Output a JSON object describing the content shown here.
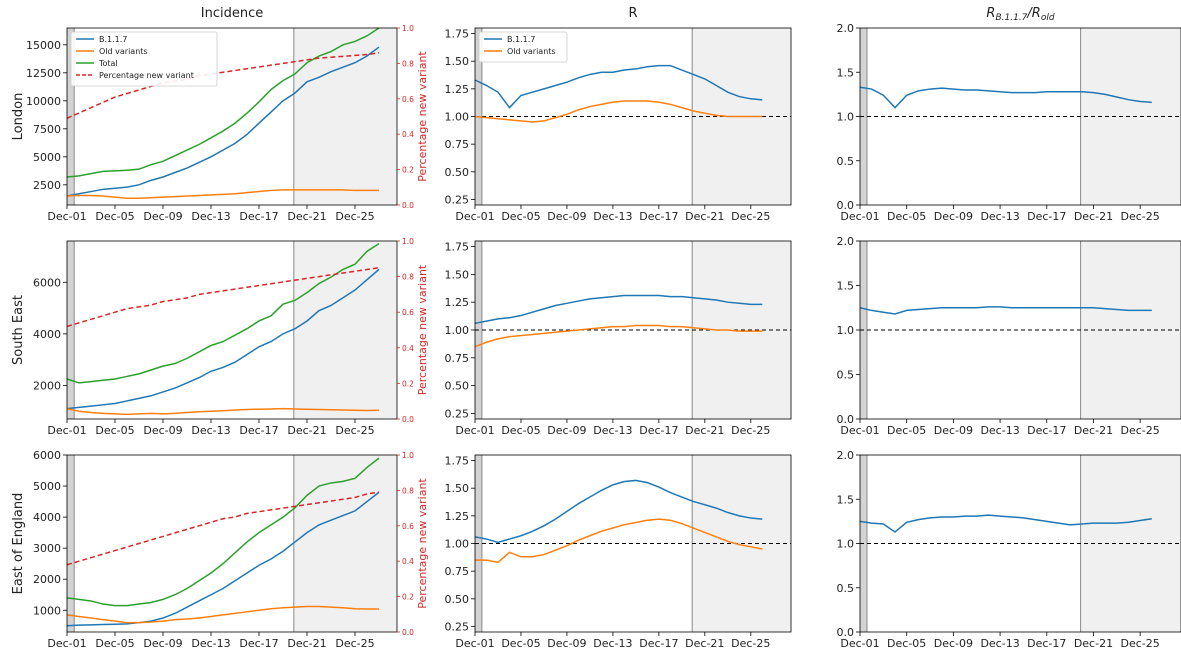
{
  "column_titles": [
    "Incidence",
    "R",
    "R_{B.1.1.7}/R_{old}"
  ],
  "row_titles": [
    "London",
    "South East",
    "East of England"
  ],
  "x_tick_labels": [
    "Dec-01",
    "Dec-05",
    "Dec-09",
    "Dec-13",
    "Dec-17",
    "Dec-21",
    "Dec-25"
  ],
  "colors": {
    "b117": "#1f77b4",
    "old": "#ff7f0e",
    "total": "#2ca02c",
    "pct": "#d62728",
    "shade": "#f0f0f0",
    "shade_dark": "#d3d3d3",
    "ref_line": "#000000"
  },
  "chart_data": {
    "type": "line",
    "x_start_date": "Dec-01",
    "x_range_days": [
      0,
      27.5
    ],
    "shading": {
      "dark_band_days": [
        0,
        0.6
      ],
      "light_band_start_day": 18.9
    },
    "panels": [
      {
        "region": "London",
        "column": "Incidence",
        "ylim": [
          700,
          16500
        ],
        "yticks": [
          2500,
          5000,
          7500,
          10000,
          12500,
          15000
        ],
        "y2label": "Percentage new variant",
        "y2lim": [
          0,
          1.0
        ],
        "y2ticks": [
          0.0,
          0.2,
          0.4,
          0.6,
          0.8,
          1.0
        ],
        "legend": [
          "B.1.1.7",
          "Old variants",
          "Total",
          "Percentage new variant"
        ],
        "legend_position": "top-left",
        "series": [
          {
            "name": "B.1.1.7",
            "values": [
              1500,
              1700,
              1900,
              2100,
              2200,
              2300,
              2500,
              2900,
              3200,
              3600,
              4000,
              4500,
              5000,
              5600,
              6200,
              7000,
              8000,
              9000,
              10000,
              10700,
              11700,
              12100,
              12600,
              13000,
              13400,
              14000,
              14800
            ]
          },
          {
            "name": "Old variants",
            "values": [
              1500,
              1550,
              1550,
              1500,
              1400,
              1300,
              1300,
              1350,
              1400,
              1450,
              1500,
              1550,
              1600,
              1650,
              1700,
              1800,
              1900,
              2000,
              2050,
              2050,
              2050,
              2050,
              2050,
              2050,
              2000,
              2000,
              2000
            ]
          },
          {
            "name": "Total",
            "values": [
              3200,
              3300,
              3500,
              3700,
              3750,
              3800,
              3900,
              4300,
              4600,
              5100,
              5600,
              6100,
              6700,
              7300,
              8000,
              8900,
              9900,
              11000,
              11800,
              12400,
              13400,
              14000,
              14400,
              15000,
              15300,
              15800,
              16500
            ]
          },
          {
            "name": "Percentage new variant",
            "axis": "y2",
            "values": [
              0.49,
              0.52,
              0.55,
              0.58,
              0.61,
              0.63,
              0.65,
              0.67,
              0.69,
              0.7,
              0.71,
              0.73,
              0.74,
              0.75,
              0.76,
              0.77,
              0.78,
              0.79,
              0.8,
              0.81,
              0.82,
              0.83,
              0.835,
              0.84,
              0.845,
              0.85,
              0.86
            ]
          }
        ]
      },
      {
        "region": "London",
        "column": "R",
        "ylim": [
          0.2,
          1.8
        ],
        "yticks": [
          0.25,
          0.5,
          0.75,
          1.0,
          1.25,
          1.5,
          1.75
        ],
        "ref_line": 1.0,
        "legend": [
          "B.1.1.7",
          "Old variants"
        ],
        "legend_position": "top-left",
        "series": [
          {
            "name": "B.1.1.7",
            "values": [
              1.33,
              1.28,
              1.22,
              1.08,
              1.19,
              1.22,
              1.25,
              1.28,
              1.31,
              1.35,
              1.38,
              1.4,
              1.4,
              1.42,
              1.43,
              1.45,
              1.46,
              1.46,
              1.42,
              1.38,
              1.34,
              1.28,
              1.22,
              1.18,
              1.16,
              1.15
            ]
          },
          {
            "name": "Old variants",
            "values": [
              1.0,
              0.99,
              0.98,
              0.97,
              0.96,
              0.95,
              0.96,
              0.99,
              1.02,
              1.06,
              1.09,
              1.11,
              1.13,
              1.14,
              1.14,
              1.14,
              1.13,
              1.11,
              1.08,
              1.05,
              1.03,
              1.01,
              1.0,
              1.0,
              1.0,
              1.0
            ]
          }
        ]
      },
      {
        "region": "London",
        "column": "Ratio",
        "ylim": [
          0.0,
          2.0
        ],
        "yticks": [
          0.0,
          0.5,
          1.0,
          1.5,
          2.0
        ],
        "ref_line": 1.0,
        "series": [
          {
            "name": "",
            "values": [
              1.33,
              1.31,
              1.24,
              1.1,
              1.24,
              1.29,
              1.31,
              1.32,
              1.31,
              1.3,
              1.3,
              1.29,
              1.28,
              1.27,
              1.27,
              1.27,
              1.28,
              1.28,
              1.28,
              1.28,
              1.27,
              1.25,
              1.22,
              1.19,
              1.17,
              1.16
            ]
          }
        ]
      },
      {
        "region": "South East",
        "column": "Incidence",
        "ylim": [
          700,
          7600
        ],
        "yticks": [
          2000,
          4000,
          6000
        ],
        "y2label": "Percentage new variant",
        "y2lim": [
          0,
          1.0
        ],
        "y2ticks": [
          0.0,
          0.2,
          0.4,
          0.6,
          0.8,
          1.0
        ],
        "series": [
          {
            "name": "B.1.1.7",
            "values": [
              1100,
              1150,
              1200,
              1250,
              1300,
              1400,
              1500,
              1600,
              1750,
              1900,
              2100,
              2300,
              2550,
              2700,
              2900,
              3200,
              3500,
              3700,
              4000,
              4200,
              4500,
              4900,
              5100,
              5400,
              5700,
              6100,
              6500
            ]
          },
          {
            "name": "Old variants",
            "values": [
              1100,
              1000,
              950,
              920,
              900,
              880,
              900,
              920,
              900,
              920,
              950,
              980,
              1000,
              1020,
              1050,
              1070,
              1080,
              1090,
              1100,
              1090,
              1080,
              1070,
              1060,
              1050,
              1040,
              1030,
              1040
            ]
          },
          {
            "name": "Total",
            "values": [
              2250,
              2100,
              2150,
              2200,
              2250,
              2350,
              2450,
              2600,
              2750,
              2850,
              3050,
              3300,
              3550,
              3700,
              3950,
              4200,
              4500,
              4700,
              5150,
              5300,
              5600,
              5950,
              6200,
              6500,
              6700,
              7200,
              7500
            ]
          },
          {
            "name": "Percentage new variant",
            "axis": "y2",
            "values": [
              0.52,
              0.54,
              0.56,
              0.58,
              0.6,
              0.62,
              0.63,
              0.64,
              0.66,
              0.67,
              0.68,
              0.7,
              0.71,
              0.72,
              0.73,
              0.74,
              0.75,
              0.76,
              0.77,
              0.78,
              0.79,
              0.8,
              0.81,
              0.82,
              0.83,
              0.84,
              0.85
            ]
          }
        ]
      },
      {
        "region": "South East",
        "column": "R",
        "ylim": [
          0.2,
          1.8
        ],
        "yticks": [
          0.25,
          0.5,
          0.75,
          1.0,
          1.25,
          1.5,
          1.75
        ],
        "ref_line": 1.0,
        "series": [
          {
            "name": "B.1.1.7",
            "values": [
              1.06,
              1.08,
              1.1,
              1.11,
              1.13,
              1.16,
              1.19,
              1.22,
              1.24,
              1.26,
              1.28,
              1.29,
              1.3,
              1.31,
              1.31,
              1.31,
              1.31,
              1.3,
              1.3,
              1.29,
              1.28,
              1.27,
              1.25,
              1.24,
              1.23,
              1.23
            ]
          },
          {
            "name": "Old variants",
            "values": [
              0.85,
              0.89,
              0.92,
              0.94,
              0.95,
              0.96,
              0.97,
              0.98,
              0.99,
              1.0,
              1.01,
              1.02,
              1.03,
              1.03,
              1.04,
              1.04,
              1.04,
              1.03,
              1.03,
              1.02,
              1.01,
              1.0,
              1.0,
              0.99,
              0.99,
              0.99
            ]
          }
        ]
      },
      {
        "region": "South East",
        "column": "Ratio",
        "ylim": [
          0.0,
          2.0
        ],
        "yticks": [
          0.0,
          0.5,
          1.0,
          1.5,
          2.0
        ],
        "ref_line": 1.0,
        "series": [
          {
            "name": "",
            "values": [
              1.25,
              1.22,
              1.2,
              1.18,
              1.22,
              1.23,
              1.24,
              1.25,
              1.25,
              1.25,
              1.25,
              1.26,
              1.26,
              1.25,
              1.25,
              1.25,
              1.25,
              1.25,
              1.25,
              1.25,
              1.25,
              1.24,
              1.23,
              1.22,
              1.22,
              1.22
            ]
          }
        ]
      },
      {
        "region": "East of England",
        "column": "Incidence",
        "ylim": [
          300,
          6000
        ],
        "yticks": [
          1000,
          2000,
          3000,
          4000,
          5000,
          6000
        ],
        "y2label": "Percentage new variant",
        "y2lim": [
          0,
          1.0
        ],
        "y2ticks": [
          0.0,
          0.2,
          0.4,
          0.6,
          0.8,
          1.0
        ],
        "series": [
          {
            "name": "B.1.1.7",
            "values": [
              500,
              520,
              530,
              540,
              550,
              560,
              600,
              650,
              750,
              900,
              1100,
              1300,
              1500,
              1700,
              1950,
              2200,
              2450,
              2650,
              2900,
              3200,
              3500,
              3750,
              3900,
              4050,
              4200,
              4500,
              4800
            ]
          },
          {
            "name": "Old variants",
            "values": [
              850,
              800,
              750,
              700,
              650,
              600,
              600,
              620,
              650,
              700,
              720,
              750,
              800,
              850,
              900,
              950,
              1000,
              1050,
              1080,
              1100,
              1120,
              1120,
              1100,
              1080,
              1050,
              1040,
              1040
            ]
          },
          {
            "name": "Total",
            "values": [
              1400,
              1350,
              1300,
              1200,
              1150,
              1150,
              1200,
              1250,
              1350,
              1500,
              1700,
              1950,
              2200,
              2500,
              2850,
              3200,
              3500,
              3750,
              4000,
              4300,
              4700,
              5000,
              5100,
              5150,
              5250,
              5600,
              5900
            ]
          },
          {
            "name": "Percentage new variant",
            "axis": "y2",
            "values": [
              0.38,
              0.4,
              0.42,
              0.44,
              0.46,
              0.48,
              0.5,
              0.52,
              0.54,
              0.56,
              0.58,
              0.6,
              0.62,
              0.64,
              0.65,
              0.67,
              0.68,
              0.69,
              0.7,
              0.71,
              0.72,
              0.73,
              0.74,
              0.75,
              0.76,
              0.78,
              0.79
            ]
          }
        ]
      },
      {
        "region": "East of England",
        "column": "R",
        "ylim": [
          0.2,
          1.8
        ],
        "yticks": [
          0.25,
          0.5,
          0.75,
          1.0,
          1.25,
          1.5,
          1.75
        ],
        "ref_line": 1.0,
        "series": [
          {
            "name": "B.1.1.7",
            "values": [
              1.06,
              1.04,
              1.01,
              1.04,
              1.07,
              1.11,
              1.16,
              1.22,
              1.29,
              1.36,
              1.42,
              1.48,
              1.53,
              1.56,
              1.57,
              1.55,
              1.51,
              1.46,
              1.42,
              1.38,
              1.35,
              1.32,
              1.28,
              1.25,
              1.23,
              1.22
            ]
          },
          {
            "name": "Old variants",
            "values": [
              0.85,
              0.85,
              0.83,
              0.92,
              0.88,
              0.88,
              0.9,
              0.94,
              0.98,
              1.03,
              1.07,
              1.11,
              1.14,
              1.17,
              1.19,
              1.21,
              1.22,
              1.21,
              1.18,
              1.14,
              1.1,
              1.06,
              1.02,
              0.99,
              0.97,
              0.95
            ]
          }
        ]
      },
      {
        "region": "East of England",
        "column": "Ratio",
        "ylim": [
          0.0,
          2.0
        ],
        "yticks": [
          0.0,
          0.5,
          1.0,
          1.5,
          2.0
        ],
        "ref_line": 1.0,
        "series": [
          {
            "name": "",
            "values": [
              1.25,
              1.23,
              1.22,
              1.13,
              1.24,
              1.27,
              1.29,
              1.3,
              1.3,
              1.31,
              1.31,
              1.32,
              1.31,
              1.3,
              1.29,
              1.27,
              1.25,
              1.23,
              1.21,
              1.22,
              1.23,
              1.23,
              1.23,
              1.24,
              1.26,
              1.28
            ]
          }
        ]
      }
    ]
  }
}
